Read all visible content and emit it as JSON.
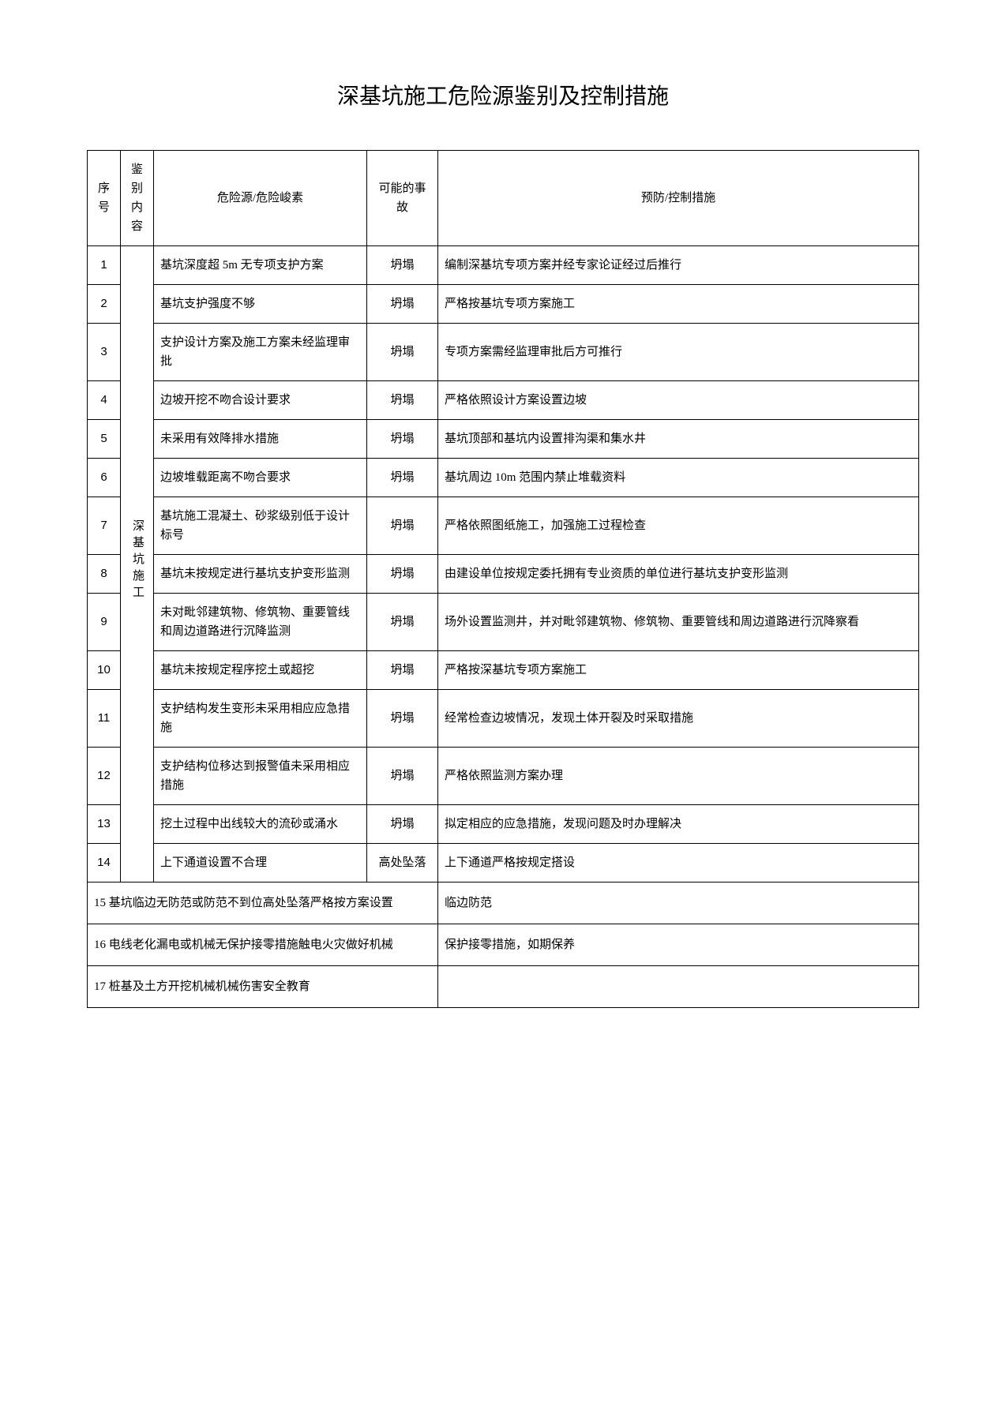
{
  "title": "深基坑施工危险源鉴别及控制措施",
  "table": {
    "headers": {
      "seq": "序号",
      "category": "鉴别内容",
      "hazard": "危险源/危险峻素",
      "accident": "可能的事故",
      "measure": "预防/控制措施"
    },
    "category_label": "深基坑施工",
    "rows": [
      {
        "seq": "1",
        "hazard": "基坑深度超 5m 无专项支护方案",
        "accident": "坍塌",
        "measure": "编制深基坑专项方案并经专家论证经过后推行"
      },
      {
        "seq": "2",
        "hazard": "基坑支护强度不够",
        "accident": "坍塌",
        "measure": "严格按基坑专项方案施工"
      },
      {
        "seq": "3",
        "hazard": "支护设计方案及施工方案未经监理审批",
        "accident": "坍塌",
        "measure": "专项方案需经监理审批后方可推行"
      },
      {
        "seq": "4",
        "hazard": "边坡开挖不吻合设计要求",
        "accident": "坍塌",
        "measure": "严格依照设计方案设置边坡"
      },
      {
        "seq": "5",
        "hazard": "未采用有效降排水措施",
        "accident": "坍塌",
        "measure": "基坑顶部和基坑内设置排沟渠和集水井"
      },
      {
        "seq": "6",
        "hazard": "边坡堆载距离不吻合要求",
        "accident": "坍塌",
        "measure": "基坑周边 10m 范围内禁止堆载资料"
      },
      {
        "seq": "7",
        "hazard": "基坑施工混凝土、砂浆级别低于设计标号",
        "accident": "坍塌",
        "measure": "严格依照图纸施工，加强施工过程检查"
      },
      {
        "seq": "8",
        "hazard": "基坑未按规定进行基坑支护变形监测",
        "accident": "坍塌",
        "measure": "由建设单位按规定委托拥有专业资质的单位进行基坑支护变形监测"
      },
      {
        "seq": "9",
        "hazard": "未对毗邻建筑物、修筑物、重要管线和周边道路进行沉降监测",
        "accident": "坍塌",
        "measure": "场外设置监测井，并对毗邻建筑物、修筑物、重要管线和周边道路进行沉降察看"
      },
      {
        "seq": "10",
        "hazard": "基坑未按规定程序挖土或超挖",
        "accident": "坍塌",
        "measure": "严格按深基坑专项方案施工"
      },
      {
        "seq": "11",
        "hazard": "支护结构发生变形未采用相应应急措施",
        "accident": "坍塌",
        "measure": "经常检查边坡情况，发现土体开裂及时采取措施"
      },
      {
        "seq": "12",
        "hazard": "支护结构位移达到报警值未采用相应措施",
        "accident": "坍塌",
        "measure": "严格依照监测方案办理"
      },
      {
        "seq": "13",
        "hazard": "挖土过程中出线较大的流砂或涌水",
        "accident": "坍塌",
        "measure": "拟定相应的应急措施，发现问题及时办理解决"
      },
      {
        "seq": "14",
        "hazard": "上下通道设置不合理",
        "accident": "高处坠落",
        "measure": "上下通道严格按规定搭设"
      }
    ],
    "spanning_rows": [
      {
        "text_left": "15 基坑临边无防范或防范不到位高处坠落严格按方案设置",
        "text_right": "临边防范"
      },
      {
        "text_left": "16 电线老化漏电或机械无保护接零措施触电火灾做好机械",
        "text_right": "保护接零措施，如期保养"
      },
      {
        "text_left": "17 桩基及土方开挖机械机械伤害安全教育",
        "text_right": ""
      }
    ]
  },
  "style": {
    "background_color": "#ffffff",
    "border_color": "#000000",
    "text_color": "#000000",
    "title_fontsize": 28,
    "cell_fontsize": 15
  }
}
